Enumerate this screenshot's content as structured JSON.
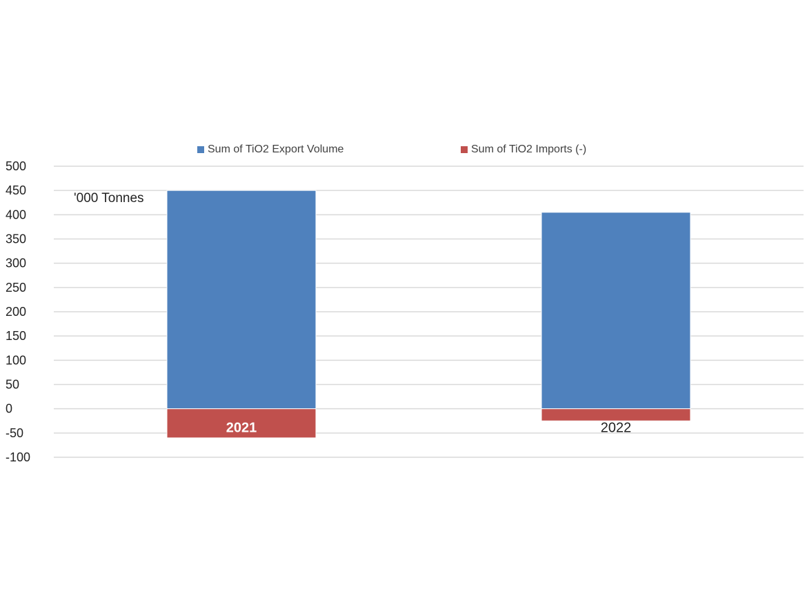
{
  "chart_data": {
    "type": "bar",
    "stacked": true,
    "categories": [
      "2021",
      "2022"
    ],
    "series": [
      {
        "name": "Sum of TiO2  Export  Volume",
        "values": [
          450,
          405
        ],
        "color": "#4f81bd"
      },
      {
        "name": "Sum of TiO2 Imports (-)",
        "values": [
          -60,
          -25
        ],
        "color": "#c0504d"
      }
    ],
    "ylabel": "'000 Tonnes",
    "ylim": [
      -100,
      500
    ],
    "yticks": [
      500,
      450,
      400,
      350,
      300,
      250,
      200,
      150,
      100,
      50,
      0,
      -50,
      -100
    ],
    "grid": true,
    "legend_position": "top",
    "category_label_colors": [
      "#ffffff",
      "#222222"
    ]
  }
}
